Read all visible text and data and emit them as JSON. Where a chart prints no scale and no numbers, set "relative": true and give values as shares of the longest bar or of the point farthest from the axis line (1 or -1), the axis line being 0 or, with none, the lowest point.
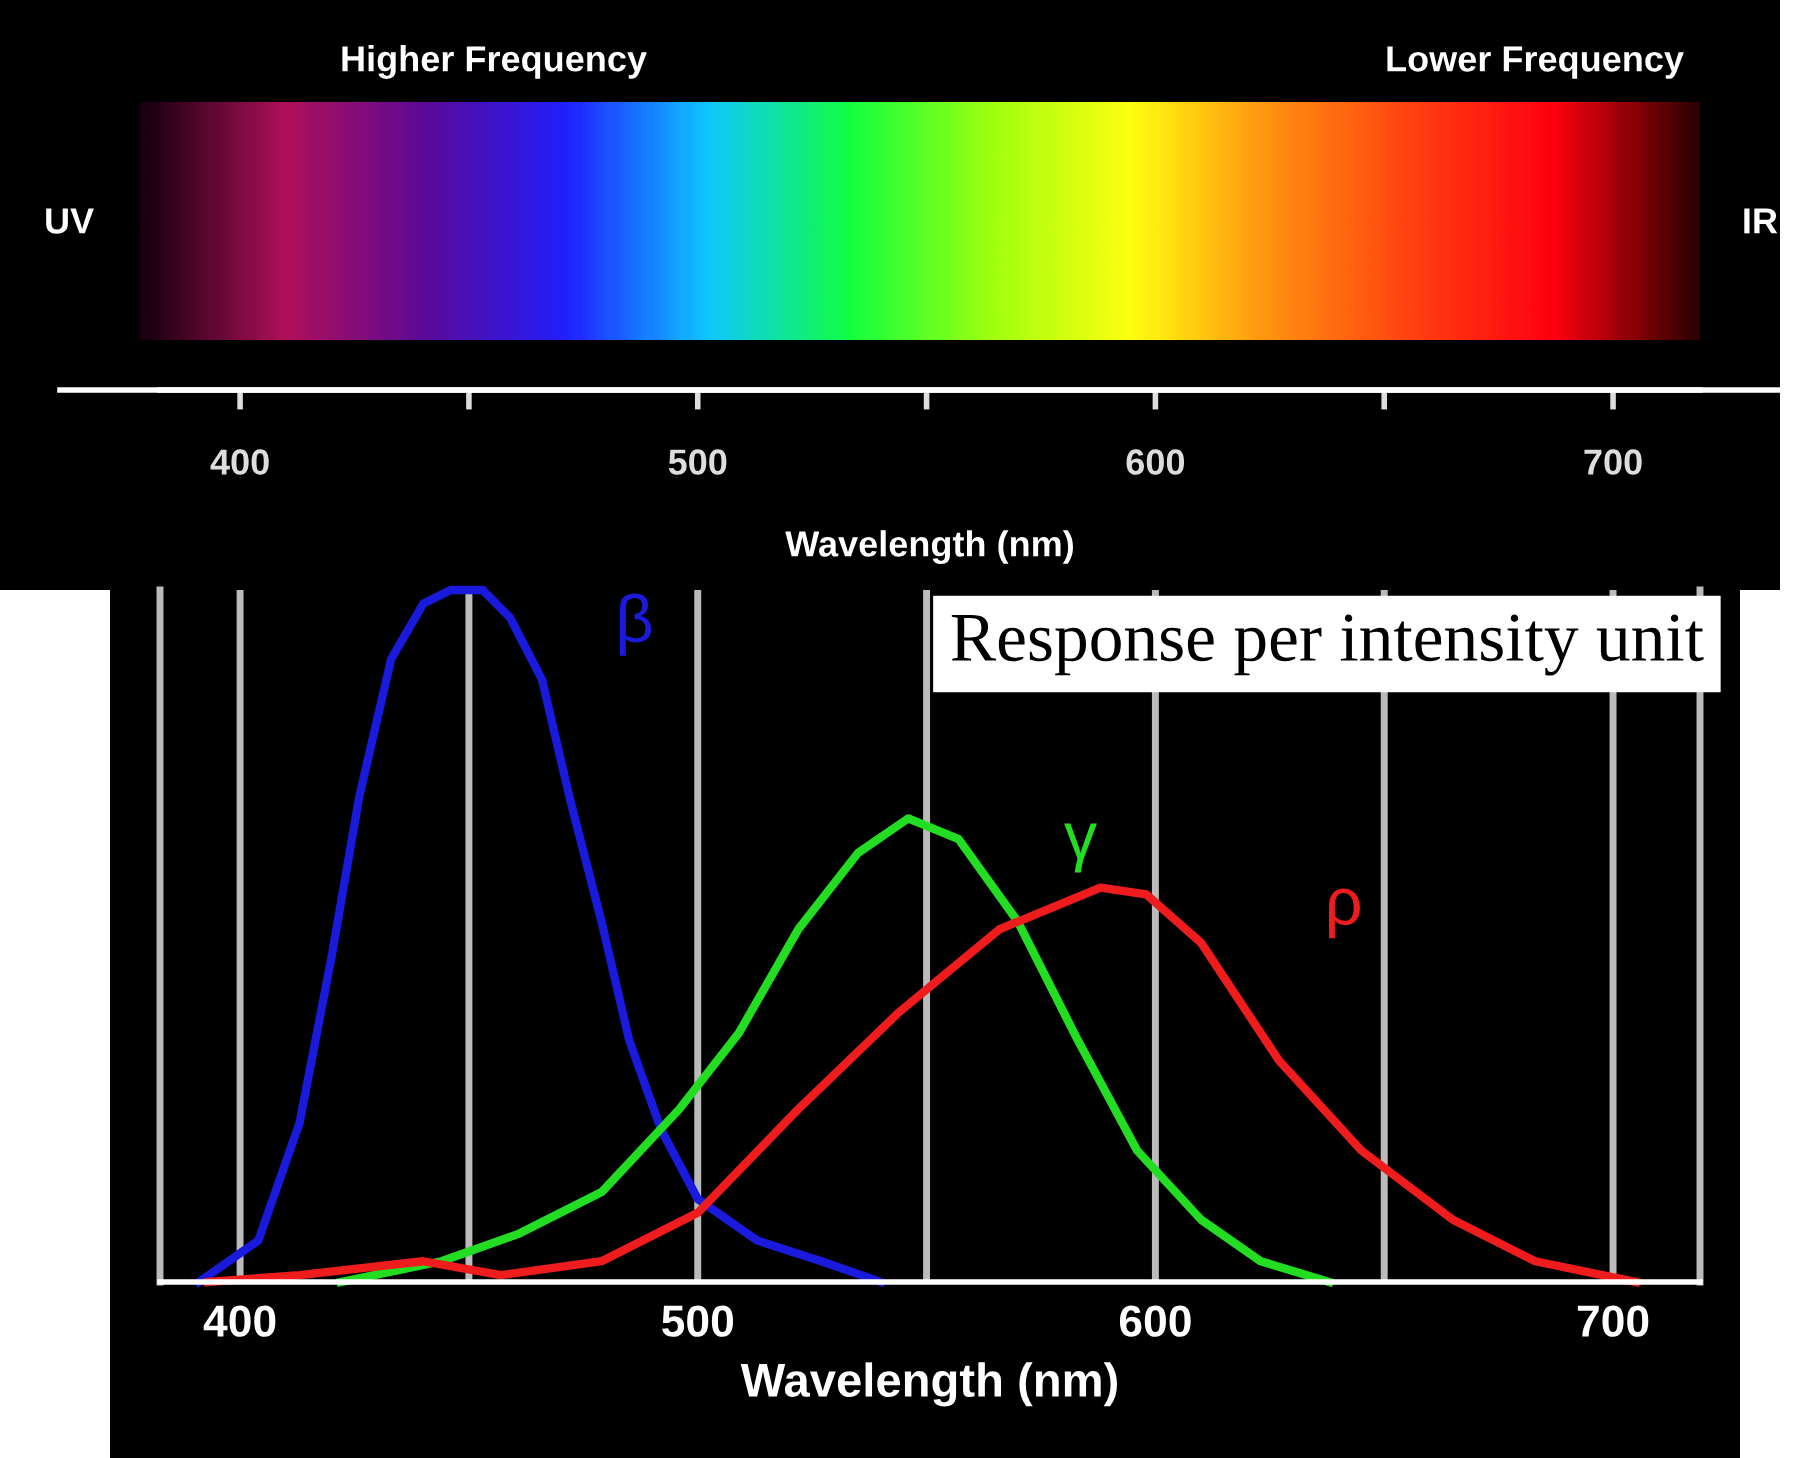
{
  "chart_data": {
    "type": "line",
    "title": "Response per intensity unit",
    "xlabel": "Wavelength (nm)",
    "x2label": "Wavelength (nm)",
    "relative": true,
    "grid": "x",
    "xlim": [
      382.5,
      719
    ],
    "xticks": [
      400,
      {
        "value": 450,
        "label": null
      },
      500,
      {
        "value": 550,
        "label": null
      },
      600,
      {
        "value": 650,
        "label": null
      },
      700
    ],
    "x2lim": [
      382.5,
      719
    ],
    "x2ticks": [
      400,
      {
        "value": 450,
        "label": null
      },
      500,
      {
        "value": 550,
        "label": null
      },
      600,
      {
        "value": 650,
        "label": null
      },
      700
    ],
    "annotations": [
      "Higher Frequency",
      "Lower Frequency",
      "UV",
      "IR"
    ],
    "series": [
      {
        "name": "β",
        "color": "#1a1adc",
        "x": [
          391,
          404,
          413,
          420,
          426,
          433,
          440,
          446,
          453,
          459,
          466,
          472,
          479,
          485,
          492,
          500,
          513,
          527,
          540
        ],
        "values": [
          0,
          0.06,
          0.23,
          0.47,
          0.7,
          0.9,
          0.98,
          1,
          1,
          0.96,
          0.87,
          0.7,
          0.52,
          0.35,
          0.22,
          0.12,
          0.06,
          0.03,
          0
        ]
      },
      {
        "name": "γ",
        "color": "#22dd22",
        "x": [
          422,
          444,
          461,
          479,
          496,
          509,
          522,
          535,
          546,
          557,
          570,
          583,
          596,
          610,
          623,
          638
        ],
        "values": [
          0,
          0.03,
          0.07,
          0.13,
          0.25,
          0.36,
          0.51,
          0.62,
          0.67,
          0.64,
          0.52,
          0.35,
          0.19,
          0.09,
          0.03,
          0
        ]
      },
      {
        "name": "ρ",
        "color": "#ee1c1c",
        "x": [
          393,
          413,
          440,
          457,
          479,
          500,
          522,
          544,
          566,
          588,
          598,
          610,
          627,
          645,
          665,
          683,
          705
        ],
        "values": [
          0,
          0.01,
          0.03,
          0.01,
          0.03,
          0.1,
          0.25,
          0.39,
          0.51,
          0.57,
          0.56,
          0.49,
          0.32,
          0.19,
          0.09,
          0.03,
          0
        ]
      }
    ]
  }
}
